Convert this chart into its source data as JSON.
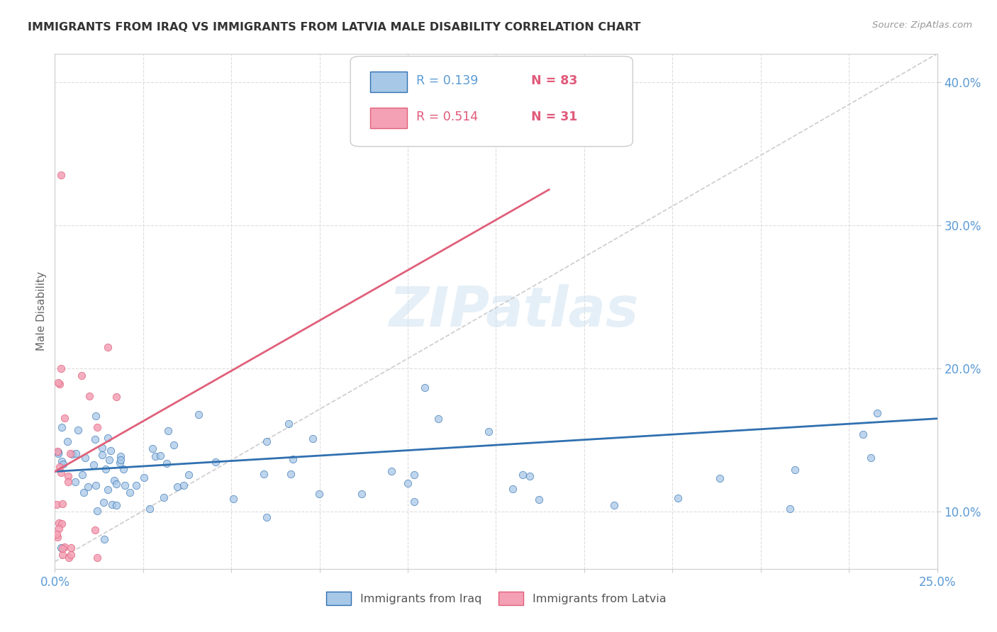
{
  "title": "IMMIGRANTS FROM IRAQ VS IMMIGRANTS FROM LATVIA MALE DISABILITY CORRELATION CHART",
  "source": "Source: ZipAtlas.com",
  "ylabel": "Male Disability",
  "r_iraq": 0.139,
  "n_iraq": 83,
  "r_latvia": 0.514,
  "n_latvia": 31,
  "color_iraq": "#a8c8e8",
  "color_latvia": "#f4a0b5",
  "color_trendline_iraq": "#3070b0",
  "color_trendline_latvia": "#e0607a",
  "color_diagonal": "#cccccc",
  "xlim": [
    0.0,
    0.25
  ],
  "ylim": [
    0.06,
    0.42
  ],
  "yticks": [
    0.1,
    0.2,
    0.3,
    0.4
  ],
  "watermark": "ZIPatlas",
  "trendline_iraq_y0": 0.128,
  "trendline_iraq_y1": 0.165,
  "trendline_latvia_x0": 0.0,
  "trendline_latvia_y0": 0.128,
  "trendline_latvia_x1": 0.14,
  "trendline_latvia_y1": 0.325
}
